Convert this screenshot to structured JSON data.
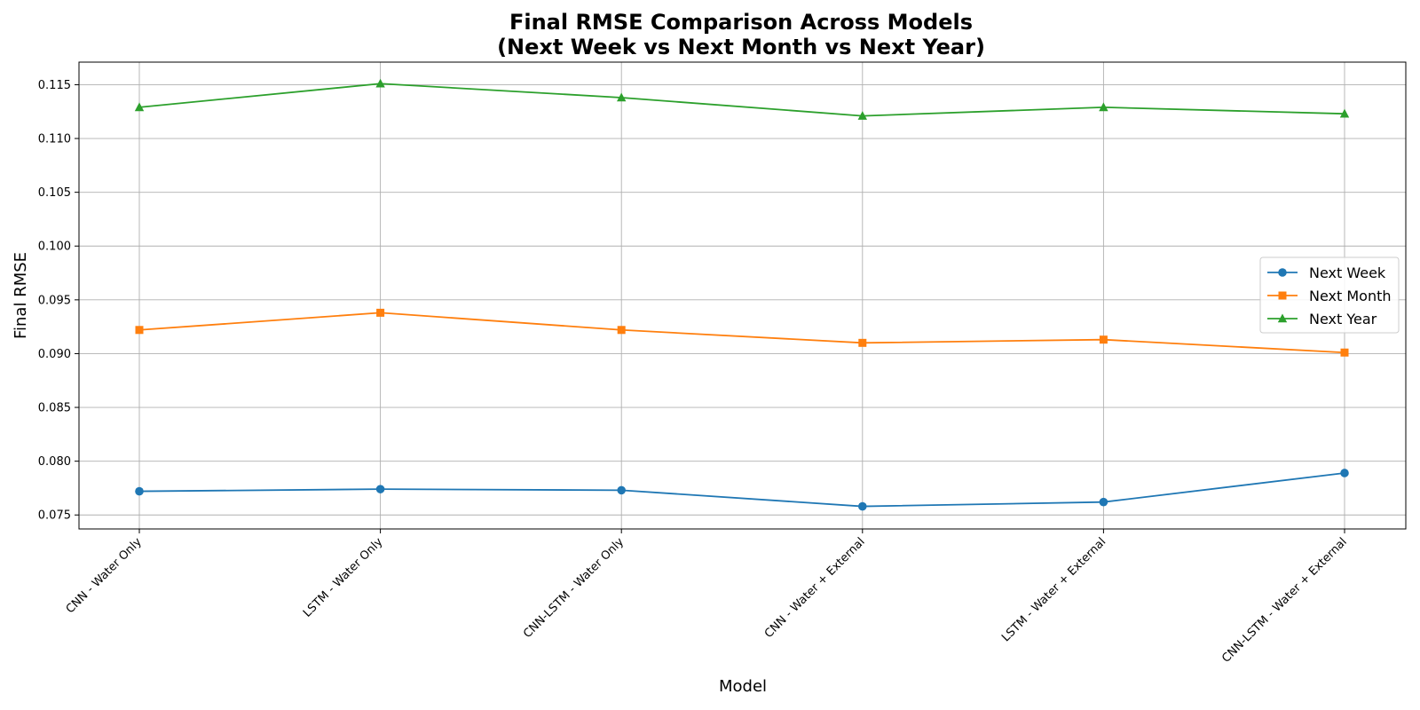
{
  "chart_data": {
    "type": "line",
    "title": [
      "Final RMSE Comparison Across Models",
      "(Next Week vs Next Month vs Next Year)"
    ],
    "xlabel": "Model",
    "ylabel": "Final RMSE",
    "categories": [
      "CNN - Water Only",
      "LSTM - Water Only",
      "CNN-LSTM - Water Only",
      "CNN - Water + External",
      "LSTM - Water + External",
      "CNN-LSTM - Water + External"
    ],
    "ylim": [
      0.0737,
      0.1171
    ],
    "yticks": [
      "0.075",
      "0.080",
      "0.085",
      "0.090",
      "0.095",
      "0.100",
      "0.105",
      "0.110",
      "0.115"
    ],
    "ytick_values": [
      0.075,
      0.08,
      0.085,
      0.09,
      0.095,
      0.1,
      0.105,
      0.11,
      0.115
    ],
    "grid": true,
    "legend_position": "center-right",
    "series": [
      {
        "name": "Next Week",
        "marker": "circle",
        "color": "#1f77b4",
        "values": [
          0.0772,
          0.0774,
          0.0773,
          0.0758,
          0.0762,
          0.0789
        ]
      },
      {
        "name": "Next Month",
        "marker": "square",
        "color": "#ff7f0e",
        "values": [
          0.0922,
          0.0938,
          0.0922,
          0.091,
          0.0913,
          0.0901
        ]
      },
      {
        "name": "Next Year",
        "marker": "triangle",
        "color": "#2ca02c",
        "values": [
          0.1129,
          0.1151,
          0.1138,
          0.1121,
          0.1129,
          0.1123
        ]
      }
    ]
  }
}
